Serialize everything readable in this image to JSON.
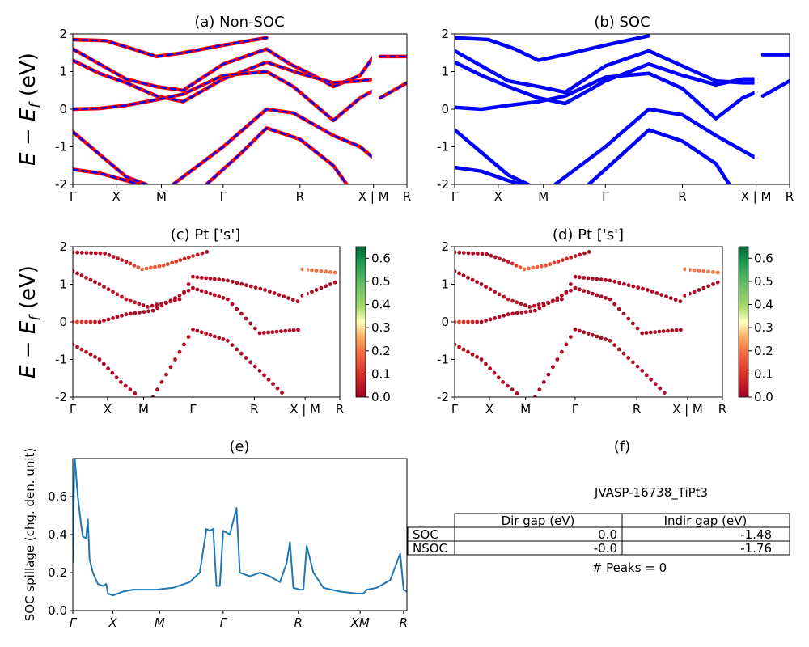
{
  "chart_data": [
    {
      "id": "a",
      "type": "line",
      "title": "(a) Non-SOC",
      "ylabel": "$E - E_f$ (eV)",
      "ylim": [
        -2,
        2
      ],
      "yticks": [
        -2,
        -1,
        0,
        1,
        2
      ],
      "xticklabels": [
        "Γ",
        "X",
        "M",
        "Γ",
        "R",
        "X | M",
        "R"
      ],
      "series": [
        {
          "color": "#ff0000",
          "style": "solid"
        },
        {
          "color": "#0000ff",
          "style": "dashed"
        }
      ],
      "bands": [
        [
          [
            0,
            1.85
          ],
          [
            0.1,
            1.82
          ],
          [
            0.18,
            1.6
          ],
          [
            0.25,
            1.4
          ],
          [
            0.33,
            1.5
          ],
          [
            0.45,
            1.7
          ],
          [
            0.58,
            1.9
          ]
        ],
        [
          [
            0,
            1.6
          ],
          [
            0.08,
            1.2
          ],
          [
            0.16,
            0.8
          ],
          [
            0.25,
            0.6
          ],
          [
            0.33,
            0.5
          ],
          [
            0.45,
            1.2
          ],
          [
            0.58,
            1.6
          ],
          [
            0.65,
            1.2
          ],
          [
            0.72,
            0.9
          ],
          [
            0.78,
            0.6
          ],
          [
            0.86,
            0.9
          ],
          [
            0.9,
            1.4
          ]
        ],
        [
          [
            0,
            1.3
          ],
          [
            0.08,
            0.95
          ],
          [
            0.16,
            0.7
          ],
          [
            0.25,
            0.35
          ],
          [
            0.33,
            0.2
          ],
          [
            0.45,
            0.8
          ],
          [
            0.58,
            1.25
          ],
          [
            0.68,
            0.95
          ],
          [
            0.78,
            0.7
          ],
          [
            0.86,
            0.75
          ],
          [
            0.9,
            0.8
          ]
        ],
        [
          [
            0,
            0.0
          ],
          [
            0.08,
            0.02
          ],
          [
            0.16,
            0.1
          ],
          [
            0.25,
            0.25
          ],
          [
            0.33,
            0.4
          ],
          [
            0.45,
            0.9
          ],
          [
            0.58,
            1.0
          ],
          [
            0.66,
            0.6
          ],
          [
            0.78,
            -0.3
          ],
          [
            0.86,
            0.3
          ],
          [
            0.9,
            0.5
          ]
        ],
        [
          [
            0,
            -0.6
          ],
          [
            0.08,
            -1.2
          ],
          [
            0.16,
            -1.8
          ],
          [
            0.22,
            -2.0
          ]
        ],
        [
          [
            0,
            -1.6
          ],
          [
            0.08,
            -1.7
          ],
          [
            0.16,
            -1.9
          ],
          [
            0.2,
            -2.0
          ]
        ],
        [
          [
            0.3,
            -2.0
          ],
          [
            0.45,
            -1.0
          ],
          [
            0.58,
            0.0
          ],
          [
            0.66,
            -0.1
          ],
          [
            0.78,
            -0.7
          ],
          [
            0.86,
            -1.0
          ],
          [
            0.9,
            -1.3
          ]
        ],
        [
          [
            0.4,
            -2.0
          ],
          [
            0.5,
            -1.2
          ],
          [
            0.58,
            -0.5
          ],
          [
            0.68,
            -0.8
          ],
          [
            0.78,
            -1.5
          ],
          [
            0.82,
            -2.0
          ]
        ],
        [
          [
            0.92,
            1.4
          ],
          [
            1.0,
            1.4
          ]
        ],
        [
          [
            0.92,
            0.3
          ],
          [
            1.0,
            0.7
          ]
        ]
      ]
    },
    {
      "id": "b",
      "type": "line",
      "title": "(b) SOC",
      "ylim": [
        -2,
        2
      ],
      "yticks": [
        -2,
        -1,
        0,
        1,
        2
      ],
      "xticklabels": [
        "Γ",
        "X",
        "M",
        "Γ",
        "R",
        "X | M",
        "R"
      ],
      "series": [
        {
          "color": "#0000ff",
          "style": "solid"
        }
      ],
      "bands": [
        [
          [
            0,
            1.9
          ],
          [
            0.1,
            1.85
          ],
          [
            0.18,
            1.6
          ],
          [
            0.25,
            1.3
          ],
          [
            0.33,
            1.45
          ],
          [
            0.45,
            1.7
          ],
          [
            0.58,
            1.95
          ]
        ],
        [
          [
            0,
            1.55
          ],
          [
            0.08,
            1.15
          ],
          [
            0.16,
            0.75
          ],
          [
            0.25,
            0.6
          ],
          [
            0.33,
            0.45
          ],
          [
            0.45,
            1.15
          ],
          [
            0.58,
            1.55
          ],
          [
            0.68,
            1.15
          ],
          [
            0.78,
            0.75
          ],
          [
            0.86,
            0.7
          ],
          [
            0.9,
            0.7
          ]
        ],
        [
          [
            0,
            1.25
          ],
          [
            0.08,
            0.9
          ],
          [
            0.16,
            0.6
          ],
          [
            0.25,
            0.3
          ],
          [
            0.33,
            0.15
          ],
          [
            0.45,
            0.75
          ],
          [
            0.58,
            1.2
          ],
          [
            0.68,
            0.9
          ],
          [
            0.78,
            0.65
          ],
          [
            0.86,
            0.8
          ],
          [
            0.9,
            0.8
          ]
        ],
        [
          [
            0,
            0.05
          ],
          [
            0.08,
            0.0
          ],
          [
            0.16,
            0.1
          ],
          [
            0.25,
            0.2
          ],
          [
            0.33,
            0.35
          ],
          [
            0.45,
            0.85
          ],
          [
            0.58,
            0.95
          ],
          [
            0.68,
            0.55
          ],
          [
            0.78,
            -0.25
          ],
          [
            0.86,
            0.3
          ],
          [
            0.9,
            0.45
          ]
        ],
        [
          [
            0,
            -0.55
          ],
          [
            0.08,
            -1.15
          ],
          [
            0.16,
            -1.75
          ],
          [
            0.22,
            -2.0
          ]
        ],
        [
          [
            0,
            -1.55
          ],
          [
            0.08,
            -1.65
          ],
          [
            0.16,
            -1.9
          ],
          [
            0.2,
            -2.0
          ]
        ],
        [
          [
            0.3,
            -2.0
          ],
          [
            0.45,
            -1.0
          ],
          [
            0.58,
            0.0
          ],
          [
            0.68,
            -0.15
          ],
          [
            0.78,
            -0.7
          ],
          [
            0.86,
            -1.1
          ],
          [
            0.9,
            -1.3
          ]
        ],
        [
          [
            0.4,
            -2.0
          ],
          [
            0.5,
            -1.2
          ],
          [
            0.58,
            -0.55
          ],
          [
            0.68,
            -0.85
          ],
          [
            0.78,
            -1.45
          ],
          [
            0.82,
            -2.0
          ]
        ],
        [
          [
            0.92,
            1.45
          ],
          [
            1.0,
            1.45
          ]
        ],
        [
          [
            0.92,
            0.35
          ],
          [
            1.0,
            0.75
          ]
        ]
      ]
    },
    {
      "id": "c",
      "type": "scatter",
      "title": "(c)  Pt ['s']",
      "ylabel": "$E - E_f$ (eV)",
      "ylim": [
        -2,
        2
      ],
      "yticks": [
        -2,
        -1,
        0,
        1,
        2
      ],
      "xticklabels": [
        "Γ",
        "X",
        "M",
        "Γ",
        "R",
        "X | M",
        "R"
      ],
      "colorbar": {
        "min": 0.0,
        "max": 0.65,
        "ticks": [
          0.0,
          0.1,
          0.2,
          0.3,
          0.4,
          0.5,
          0.6
        ]
      },
      "bands": [
        [
          [
            0,
            1.85,
            0.02
          ],
          [
            0.12,
            1.82,
            0.02
          ],
          [
            0.2,
            1.6,
            0.05
          ],
          [
            0.26,
            1.4,
            0.2
          ],
          [
            0.34,
            1.5,
            0.15
          ],
          [
            0.45,
            1.75,
            0.05
          ],
          [
            0.52,
            1.9,
            0.02
          ]
        ],
        [
          [
            0,
            1.35,
            0.02
          ],
          [
            0.1,
            1.0,
            0.02
          ],
          [
            0.2,
            0.6,
            0.05
          ],
          [
            0.28,
            0.4,
            0.02
          ],
          [
            0.4,
            0.6,
            0.02
          ],
          [
            0.45,
            1.2,
            0.02
          ],
          [
            0.58,
            1.1,
            0.02
          ],
          [
            0.72,
            0.85,
            0.02
          ],
          [
            0.86,
            0.5,
            0.02
          ]
        ],
        [
          [
            0,
            0.0,
            0.15
          ],
          [
            0.1,
            0.0,
            0.02
          ],
          [
            0.2,
            0.2,
            0.02
          ],
          [
            0.3,
            0.3,
            0.02
          ],
          [
            0.45,
            0.9,
            0.02
          ],
          [
            0.58,
            0.6,
            0.02
          ],
          [
            0.7,
            -0.3,
            0.02
          ],
          [
            0.86,
            -0.2,
            0.02
          ]
        ],
        [
          [
            0,
            -0.6,
            0.05
          ],
          [
            0.1,
            -1.0,
            0.02
          ],
          [
            0.18,
            -1.6,
            0.02
          ],
          [
            0.25,
            -2.0,
            0.02
          ]
        ],
        [
          [
            0.3,
            -2.0,
            0.02
          ],
          [
            0.45,
            -0.2,
            0.02
          ],
          [
            0.58,
            -0.5,
            0.02
          ],
          [
            0.7,
            -1.3,
            0.02
          ],
          [
            0.8,
            -2.0,
            0.02
          ]
        ],
        [
          [
            0.86,
            1.4,
            0.2
          ],
          [
            1.0,
            1.3,
            0.2
          ]
        ],
        [
          [
            0.86,
            0.7,
            0.02
          ],
          [
            1.0,
            1.1,
            0.02
          ]
        ]
      ]
    },
    {
      "id": "d",
      "type": "scatter",
      "title": "(d) Pt ['s']",
      "ylim": [
        -2,
        2
      ],
      "yticks": [
        -2,
        -1,
        0,
        1,
        2
      ],
      "xticklabels": [
        "Γ",
        "X",
        "M",
        "Γ",
        "R",
        "X | M",
        "R"
      ],
      "colorbar": {
        "min": 0.0,
        "max": 0.65,
        "ticks": [
          0.0,
          0.1,
          0.2,
          0.3,
          0.4,
          0.5,
          0.6
        ]
      },
      "bands": [
        [
          [
            0,
            1.85,
            0.02
          ],
          [
            0.12,
            1.8,
            0.02
          ],
          [
            0.2,
            1.6,
            0.05
          ],
          [
            0.26,
            1.4,
            0.2
          ],
          [
            0.34,
            1.5,
            0.15
          ],
          [
            0.45,
            1.75,
            0.05
          ],
          [
            0.52,
            1.9,
            0.02
          ]
        ],
        [
          [
            0,
            1.35,
            0.02
          ],
          [
            0.1,
            1.0,
            0.02
          ],
          [
            0.2,
            0.6,
            0.05
          ],
          [
            0.28,
            0.4,
            0.02
          ],
          [
            0.4,
            0.6,
            0.02
          ],
          [
            0.45,
            1.2,
            0.02
          ],
          [
            0.58,
            1.1,
            0.02
          ],
          [
            0.72,
            0.85,
            0.02
          ],
          [
            0.86,
            0.5,
            0.02
          ]
        ],
        [
          [
            0,
            0.0,
            0.15
          ],
          [
            0.1,
            0.0,
            0.02
          ],
          [
            0.2,
            0.2,
            0.02
          ],
          [
            0.3,
            0.3,
            0.02
          ],
          [
            0.45,
            0.9,
            0.02
          ],
          [
            0.58,
            0.6,
            0.02
          ],
          [
            0.7,
            -0.3,
            0.02
          ],
          [
            0.86,
            -0.2,
            0.02
          ]
        ],
        [
          [
            0,
            -0.6,
            0.05
          ],
          [
            0.1,
            -1.0,
            0.02
          ],
          [
            0.18,
            -1.6,
            0.02
          ],
          [
            0.25,
            -2.0,
            0.02
          ]
        ],
        [
          [
            0.3,
            -2.0,
            0.02
          ],
          [
            0.45,
            -0.2,
            0.02
          ],
          [
            0.58,
            -0.5,
            0.02
          ],
          [
            0.7,
            -1.3,
            0.02
          ],
          [
            0.8,
            -2.0,
            0.02
          ]
        ],
        [
          [
            0.86,
            1.4,
            0.2
          ],
          [
            1.0,
            1.3,
            0.2
          ]
        ],
        [
          [
            0.86,
            0.7,
            0.02
          ],
          [
            1.0,
            1.1,
            0.02
          ]
        ]
      ]
    },
    {
      "id": "e",
      "type": "line",
      "title": "(e)",
      "ylabel": "SOC spillage (chg. den. unit)",
      "ylim": [
        0,
        0.8
      ],
      "yticks": [
        0.0,
        0.2,
        0.4,
        0.6
      ],
      "xticklabels": [
        "Γ",
        "X",
        "M",
        "Γ",
        "R",
        "XM",
        "R"
      ],
      "series": [
        {
          "color": "#1f77b4",
          "style": "solid"
        }
      ],
      "values": [
        [
          0,
          0.25
        ],
        [
          0.005,
          0.82
        ],
        [
          0.015,
          0.6
        ],
        [
          0.025,
          0.45
        ],
        [
          0.03,
          0.39
        ],
        [
          0.04,
          0.38
        ],
        [
          0.045,
          0.48
        ],
        [
          0.05,
          0.27
        ],
        [
          0.06,
          0.2
        ],
        [
          0.075,
          0.14
        ],
        [
          0.09,
          0.13
        ],
        [
          0.1,
          0.14
        ],
        [
          0.105,
          0.09
        ],
        [
          0.12,
          0.08
        ],
        [
          0.135,
          0.09
        ],
        [
          0.15,
          0.1
        ],
        [
          0.18,
          0.11
        ],
        [
          0.25,
          0.11
        ],
        [
          0.3,
          0.12
        ],
        [
          0.35,
          0.15
        ],
        [
          0.38,
          0.2
        ],
        [
          0.4,
          0.43
        ],
        [
          0.41,
          0.42
        ],
        [
          0.42,
          0.43
        ],
        [
          0.43,
          0.13
        ],
        [
          0.44,
          0.13
        ],
        [
          0.45,
          0.42
        ],
        [
          0.47,
          0.4
        ],
        [
          0.49,
          0.54
        ],
        [
          0.5,
          0.2
        ],
        [
          0.53,
          0.18
        ],
        [
          0.56,
          0.2
        ],
        [
          0.59,
          0.18
        ],
        [
          0.62,
          0.15
        ],
        [
          0.64,
          0.25
        ],
        [
          0.65,
          0.36
        ],
        [
          0.66,
          0.12
        ],
        [
          0.68,
          0.11
        ],
        [
          0.69,
          0.11
        ],
        [
          0.7,
          0.34
        ],
        [
          0.72,
          0.2
        ],
        [
          0.75,
          0.12
        ],
        [
          0.8,
          0.1
        ],
        [
          0.85,
          0.09
        ],
        [
          0.87,
          0.09
        ],
        [
          0.88,
          0.11
        ],
        [
          0.91,
          0.12
        ],
        [
          0.95,
          0.16
        ],
        [
          0.98,
          0.3
        ],
        [
          0.99,
          0.11
        ],
        [
          1.0,
          0.1
        ]
      ]
    }
  ],
  "panel_f": {
    "title": "(f)",
    "material": "JVASP-16738_TiPt3",
    "columns": [
      "Dir gap (eV)",
      "Indir gap (eV)"
    ],
    "rows": [
      {
        "label": "SOC",
        "dir": "0.0",
        "indir": "-1.48"
      },
      {
        "label": "NSOC",
        "dir": "-0.0",
        "indir": "-1.76"
      }
    ],
    "peaks": "# Peaks = 0"
  }
}
